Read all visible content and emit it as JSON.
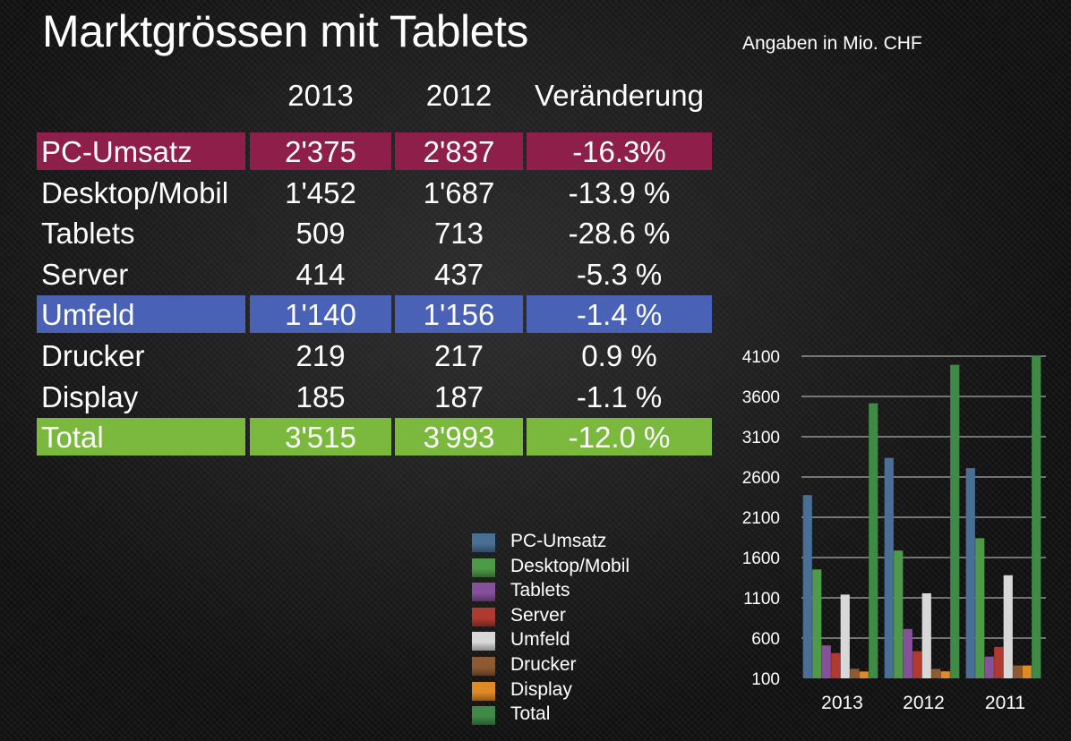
{
  "title": "Marktgrössen mit Tablets",
  "note": "Angaben in Mio. CHF",
  "table": {
    "headers": [
      "2013",
      "2012",
      "Veränderung"
    ],
    "rows": [
      {
        "label": "PC-Umsatz",
        "v2013": "2'375",
        "v2012": "2'837",
        "change": "-16.3%",
        "highlight": "#8e1f4a"
      },
      {
        "label": "Desktop/Mobil",
        "v2013": "1'452",
        "v2012": "1'687",
        "change": "-13.9 %",
        "highlight": ""
      },
      {
        "label": "Tablets",
        "v2013": "509",
        "v2012": "713",
        "change": "-28.6 %",
        "highlight": ""
      },
      {
        "label": "Server",
        "v2013": "414",
        "v2012": "437",
        "change": "-5.3 %",
        "highlight": ""
      },
      {
        "label": "Umfeld",
        "v2013": "1'140",
        "v2012": "1'156",
        "change": "-1.4 %",
        "highlight": "#4a62b6"
      },
      {
        "label": "Drucker",
        "v2013": "219",
        "v2012": "217",
        "change": "0.9 %",
        "highlight": ""
      },
      {
        "label": "Display",
        "v2013": "185",
        "v2012": "187",
        "change": "-1.1 %",
        "highlight": ""
      },
      {
        "label": "Total",
        "v2013": "3'515",
        "v2012": "3'993",
        "change": "-12.0 %",
        "highlight": "#7ab83e"
      }
    ]
  },
  "chart_data": {
    "type": "bar",
    "categories": [
      "2013",
      "2012",
      "2011"
    ],
    "series": [
      {
        "name": "PC-Umsatz",
        "color": "#4a6f96",
        "values": [
          2375,
          2837,
          2710
        ]
      },
      {
        "name": "Desktop/Mobil",
        "color": "#4e9a48",
        "values": [
          1452,
          1687,
          1840
        ]
      },
      {
        "name": "Tablets",
        "color": "#86509a",
        "values": [
          509,
          713,
          370
        ]
      },
      {
        "name": "Server",
        "color": "#b03a30",
        "values": [
          414,
          437,
          490
        ]
      },
      {
        "name": "Umfeld",
        "color": "#d8d8d8",
        "values": [
          1140,
          1156,
          1380
        ]
      },
      {
        "name": "Drucker",
        "color": "#8e5a34",
        "values": [
          219,
          217,
          260
        ]
      },
      {
        "name": "Display",
        "color": "#e08a26",
        "values": [
          185,
          187,
          260
        ]
      },
      {
        "name": "Total",
        "color": "#3e8a46",
        "values": [
          3515,
          3993,
          4110
        ]
      }
    ],
    "yticks": [
      100,
      600,
      1100,
      1600,
      2100,
      2600,
      3100,
      3600,
      4100
    ],
    "ylim": [
      100,
      4100
    ],
    "grid": true,
    "legend": "left"
  }
}
